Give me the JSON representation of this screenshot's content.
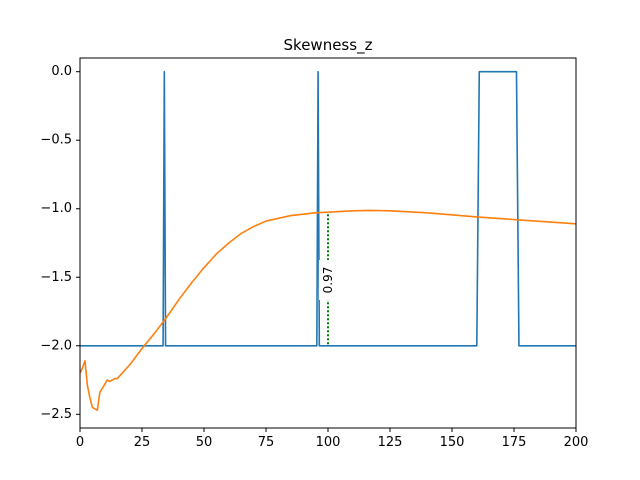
{
  "chart_data": {
    "type": "line",
    "title": "Skewness_z",
    "xlabel": "",
    "ylabel": "",
    "xlim": [
      0,
      200
    ],
    "ylim": [
      -2.6,
      0.1
    ],
    "grid": false,
    "legend": "none",
    "x_ticks": [
      0,
      25,
      50,
      75,
      100,
      125,
      150,
      175,
      200
    ],
    "x_tick_labels": [
      "0",
      "25",
      "50",
      "75",
      "100",
      "125",
      "150",
      "175",
      "200"
    ],
    "y_ticks": [
      0.0,
      -0.5,
      -1.0,
      -1.5,
      -2.0,
      -2.5
    ],
    "y_tick_labels": [
      "0.0",
      "−0.5",
      "−1.0",
      "−1.5",
      "−2.0",
      "−2.5"
    ],
    "series": [
      {
        "color": "#1f77b4",
        "points": [
          [
            0,
            -2.0
          ],
          [
            33.5,
            -2.0
          ],
          [
            34,
            0.0
          ],
          [
            34.5,
            -2.0
          ],
          [
            95.5,
            -2.0
          ],
          [
            96,
            0.0
          ],
          [
            96.5,
            -2.0
          ],
          [
            160,
            -2.0
          ],
          [
            161,
            0.0
          ],
          [
            176,
            0.0
          ],
          [
            177,
            -2.0
          ],
          [
            200,
            -2.0
          ]
        ]
      },
      {
        "color": "#ff7f0e",
        "points": [
          [
            0,
            -2.2
          ],
          [
            1,
            -2.16
          ],
          [
            2,
            -2.11
          ],
          [
            3,
            -2.29
          ],
          [
            4,
            -2.38
          ],
          [
            5,
            -2.45
          ],
          [
            6,
            -2.46
          ],
          [
            7,
            -2.47
          ],
          [
            8,
            -2.34
          ],
          [
            9,
            -2.31
          ],
          [
            10,
            -2.28
          ],
          [
            11,
            -2.25
          ],
          [
            12,
            -2.26
          ],
          [
            13,
            -2.25
          ],
          [
            14,
            -2.24
          ],
          [
            15,
            -2.24
          ],
          [
            16,
            -2.22
          ],
          [
            20,
            -2.14
          ],
          [
            25,
            -2.02
          ],
          [
            30,
            -1.91
          ],
          [
            35,
            -1.79
          ],
          [
            40,
            -1.66
          ],
          [
            45,
            -1.54
          ],
          [
            50,
            -1.43
          ],
          [
            55,
            -1.33
          ],
          [
            60,
            -1.25
          ],
          [
            65,
            -1.18
          ],
          [
            70,
            -1.13
          ],
          [
            75,
            -1.09
          ],
          [
            80,
            -1.07
          ],
          [
            85,
            -1.05
          ],
          [
            90,
            -1.04
          ],
          [
            95,
            -1.03
          ],
          [
            100,
            -1.025
          ],
          [
            110,
            -1.015
          ],
          [
            117,
            -1.012
          ],
          [
            125,
            -1.015
          ],
          [
            140,
            -1.03
          ],
          [
            160,
            -1.06
          ],
          [
            180,
            -1.085
          ],
          [
            200,
            -1.11
          ]
        ]
      }
    ],
    "annotation": {
      "label": "0.97",
      "x": 100,
      "y_from": -1.04,
      "y_to": -2.0,
      "color": "#008000"
    }
  }
}
